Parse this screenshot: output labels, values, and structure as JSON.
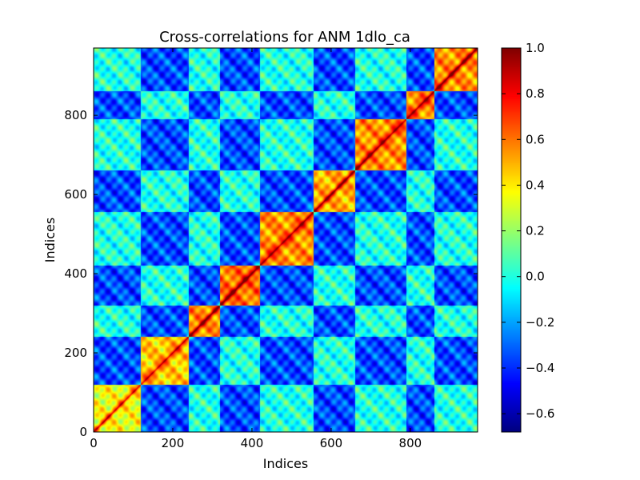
{
  "chart_data": {
    "type": "heatmap",
    "title": "Cross-correlations for ANM 1dlo_ca",
    "xlabel": "Indices",
    "ylabel": "Indices",
    "n": 970,
    "xlim": [
      0,
      970
    ],
    "ylim": [
      0,
      970
    ],
    "x_ticks": [
      "0",
      "200",
      "400",
      "600",
      "800"
    ],
    "x_tick_values": [
      0,
      200,
      400,
      600,
      800
    ],
    "y_ticks": [
      "0",
      "200",
      "400",
      "600",
      "800"
    ],
    "y_tick_values": [
      0,
      200,
      400,
      600,
      800
    ],
    "colorbar": {
      "min": -0.68,
      "max": 1.0,
      "ticks": [
        "−0.6",
        "−0.4",
        "−0.2",
        "0.0",
        "0.2",
        "0.4",
        "0.6",
        "0.8",
        "1.0"
      ],
      "tick_values": [
        -0.6,
        -0.4,
        -0.2,
        0.0,
        0.2,
        0.4,
        0.6,
        0.8,
        1.0
      ],
      "colormap": "jet"
    },
    "domains": [
      {
        "start": 0,
        "end": 120,
        "mean_within": 0.35
      },
      {
        "start": 120,
        "end": 240,
        "mean_within": 0.45
      },
      {
        "start": 240,
        "end": 320,
        "mean_within": 0.55
      },
      {
        "start": 320,
        "end": 420,
        "mean_within": 0.6
      },
      {
        "start": 420,
        "end": 555,
        "mean_within": 0.55
      },
      {
        "start": 555,
        "end": 660,
        "mean_within": 0.5
      },
      {
        "start": 660,
        "end": 790,
        "mean_within": 0.55
      },
      {
        "start": 790,
        "end": 860,
        "mean_within": 0.55
      },
      {
        "start": 860,
        "end": 970,
        "mean_within": 0.55
      }
    ],
    "grid": false,
    "legend": "none"
  }
}
